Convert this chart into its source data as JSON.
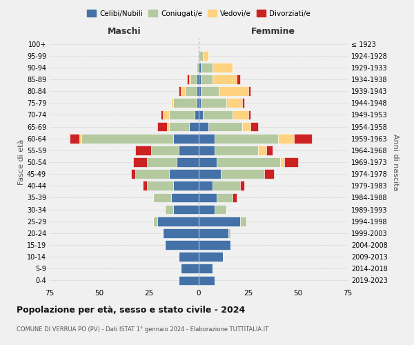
{
  "age_groups": [
    "0-4",
    "5-9",
    "10-14",
    "15-19",
    "20-24",
    "25-29",
    "30-34",
    "35-39",
    "40-44",
    "45-49",
    "50-54",
    "55-59",
    "60-64",
    "65-69",
    "70-74",
    "75-79",
    "80-84",
    "85-89",
    "90-94",
    "95-99",
    "100+"
  ],
  "birth_years": [
    "2019-2023",
    "2014-2018",
    "2009-2013",
    "2004-2008",
    "1999-2003",
    "1994-1998",
    "1989-1993",
    "1984-1988",
    "1979-1983",
    "1974-1978",
    "1969-1973",
    "1964-1968",
    "1959-1963",
    "1954-1958",
    "1949-1953",
    "1944-1948",
    "1939-1943",
    "1934-1938",
    "1929-1933",
    "1924-1928",
    "≤ 1923"
  ],
  "maschi": {
    "celibi": [
      10,
      9,
      10,
      17,
      18,
      21,
      13,
      14,
      13,
      15,
      11,
      10,
      13,
      5,
      2,
      1,
      1,
      1,
      0,
      0,
      0
    ],
    "coniugati": [
      0,
      0,
      0,
      0,
      0,
      2,
      4,
      9,
      13,
      17,
      15,
      14,
      46,
      10,
      13,
      12,
      6,
      3,
      1,
      0,
      0
    ],
    "vedovi": [
      0,
      0,
      0,
      0,
      0,
      0,
      0,
      0,
      0,
      0,
      0,
      0,
      1,
      1,
      3,
      1,
      2,
      1,
      0,
      0,
      0
    ],
    "divorziati": [
      0,
      0,
      0,
      0,
      0,
      0,
      0,
      0,
      2,
      2,
      7,
      8,
      5,
      5,
      1,
      0,
      1,
      1,
      0,
      0,
      0
    ]
  },
  "femmine": {
    "nubili": [
      8,
      7,
      12,
      16,
      15,
      21,
      8,
      9,
      7,
      11,
      9,
      8,
      8,
      5,
      2,
      1,
      1,
      1,
      1,
      0,
      0
    ],
    "coniugate": [
      0,
      0,
      0,
      0,
      1,
      3,
      6,
      8,
      14,
      22,
      32,
      22,
      32,
      17,
      15,
      13,
      9,
      6,
      6,
      2,
      0
    ],
    "vedove": [
      0,
      0,
      0,
      0,
      0,
      0,
      0,
      0,
      0,
      0,
      2,
      4,
      8,
      4,
      8,
      8,
      15,
      12,
      10,
      3,
      0
    ],
    "divorziate": [
      0,
      0,
      0,
      0,
      0,
      0,
      0,
      2,
      2,
      5,
      7,
      3,
      9,
      4,
      1,
      1,
      1,
      2,
      0,
      0,
      0
    ]
  },
  "colors": {
    "celibi": "#4472a8",
    "coniugati": "#b5c9a1",
    "vedovi": "#ffd27f",
    "divorziati": "#cc2222"
  },
  "xlim": 75,
  "title": "Popolazione per età, sesso e stato civile - 2024",
  "subtitle": "COMUNE DI VERRUA PO (PV) - Dati ISTAT 1° gennaio 2024 - Elaborazione TUTTITALIA.IT",
  "xlabel_left": "Maschi",
  "xlabel_right": "Femmine",
  "ylabel_left": "Fasce di età",
  "ylabel_right": "Anni di nascita",
  "legend_labels": [
    "Celibi/Nubili",
    "Coniugati/e",
    "Vedovi/e",
    "Divorziati/e"
  ],
  "background_color": "#f0f0f0",
  "grid_color": "#cccccc"
}
